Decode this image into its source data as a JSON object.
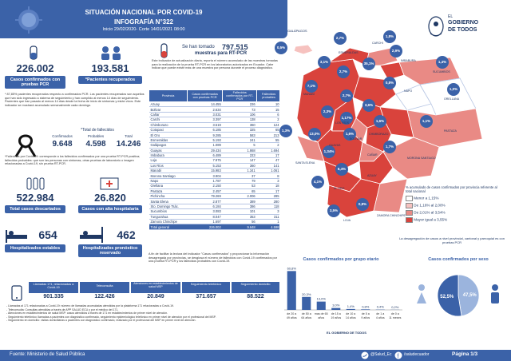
{
  "header": {
    "title": "SITUACIÓN NACIONAL POR COVID-19",
    "subtitle": "INFOGRAFÍA N°322",
    "period": "Inicio 29/02/2020- Corte 14/01/2021 08:00",
    "logo_line1": "EL",
    "logo_line2": "GOBIERNO",
    "logo_line3": "DE TODOS"
  },
  "stats": {
    "confirmed_pcr": "226.002",
    "confirmed_label": "Casos confirmados con pruebas PCR",
    "recovered": "193.581",
    "recovered_label": "*Pacientes recuperados",
    "recovered_note": "* 87,85% pacientes recuperados respecto a confirmados PCR. Los pacientes recuperados son aquellos que han sido ingresado a sistema de seguimiento y han cumplido al menos 14 días de seguimiento. Pacientes que han pasado al menos 14 días desde la fecha de inicio de síntomas y están vivos. Este indicador se mostrará acumulado semanalmente cada domingo.",
    "deaths_title": "*Total de fallecidos",
    "deaths_confirmed_label": "Confirmados",
    "deaths_confirmed": "9.648",
    "deaths_probable_label": "Probables",
    "deaths_probable": "4.598",
    "deaths_total_label": "Total",
    "deaths_total": "14.246",
    "deaths_note": "*Fallecidos por Covid-19: corresponde a los fallecidos confirmados por una prueba RT-PCR positiva; fallecidos probables: que son las personas con síntomas, otras pruebas de laboratorio o imagen relacionadas a Covid-19, sin prueba RT-PCR.",
    "discarded": "522.984",
    "discarded_label": "Total casos descartados",
    "hospital_discharge": "26.820",
    "hospital_discharge_label": "Casos con alta hospitalaria",
    "hospitalized_stable": "654",
    "hospitalized_stable_label": "Hospitalizados estables",
    "hospitalized_reserved": "462",
    "hospitalized_reserved_label": "Hospitalizados pronóstico reservado"
  },
  "tests": {
    "label": "Se han tomado",
    "value": "797.515",
    "unit": "muestras para RT-PCR",
    "note": "Este indicador de actualización diaria, reporta el número acumulado de las muestras tomadas para la realización de la prueba RT-PCR en los laboratorios autorizados en Ecuador. Cabe indicar que puede existir más de una muestra por persona durante el proceso diagnóstico."
  },
  "table": {
    "headers": [
      "Provincia",
      "Casos confirmados con pruebas PCR",
      "Fallecidos confirmados por RT-PCR",
      "Fallecidos probables"
    ],
    "rows": [
      [
        "Azuay",
        "14.455",
        "226",
        "10"
      ],
      [
        "Bolívar",
        "2.634",
        "73",
        "15"
      ],
      [
        "Cañar",
        "3.031",
        "106",
        "6"
      ],
      [
        "Carchi",
        "3.397",
        "138",
        "2"
      ],
      [
        "Chimborazo",
        "3.519",
        "360",
        "124"
      ],
      [
        "Cotopaxi",
        "6.185",
        "325",
        "65"
      ],
      [
        "El Oro",
        "9.285",
        "583",
        "213"
      ],
      [
        "Esmeraldas",
        "5.193",
        "241",
        "55"
      ],
      [
        "Galápagos",
        "1.089",
        "5",
        "2"
      ],
      [
        "Guayas",
        "29.434",
        "1.868",
        "1.694"
      ],
      [
        "Imbabura",
        "6.489",
        "223",
        "17"
      ],
      [
        "Loja",
        "7.975",
        "147",
        "47"
      ],
      [
        "Los Ríos",
        "5.153",
        "360",
        "141"
      ],
      [
        "Manabí",
        "15.983",
        "1.341",
        "1.061"
      ],
      [
        "Morona Santiago",
        "3.904",
        "37",
        "8"
      ],
      [
        "Napo",
        "1.787",
        "79",
        "3"
      ],
      [
        "Orellana",
        "2.150",
        "53",
        "18"
      ],
      [
        "Pastaza",
        "2.457",
        "65",
        "17"
      ],
      [
        "Pichincha",
        "79.269",
        "2.006",
        "285"
      ],
      [
        "Santa Elena",
        "2.877",
        "389",
        "280"
      ],
      [
        "Sto. Domingo Tsác.",
        "6.184",
        "386",
        "118"
      ],
      [
        "Sucumbíos",
        "3.083",
        "101",
        "3"
      ],
      [
        "Tungurahua",
        "8.047",
        "353",
        "311"
      ],
      [
        "Zamora Chinchipe",
        "1.697",
        "56",
        "1"
      ]
    ],
    "total": [
      "Total general",
      "226.002",
      "9.648",
      "4.598"
    ],
    "footnote": "A fin de facilitar la lectura del indicador \"Casos confirmados\" y proporcionar la información desagregada por provincias, se desglosa el número de fallecidos con Covid-19 confirmados por una prueba RT-PCR y los fallecidos probables con Covid-19."
  },
  "map": {
    "title_galapagos": "GALÁPAGOS",
    "badges": [
      {
        "label": "0,5%"
      },
      {
        "label": "2,7%"
      },
      {
        "label": "1,8%"
      },
      {
        "label": "2,9%"
      },
      {
        "label": "3,1%"
      },
      {
        "label": "35,1%"
      },
      {
        "label": "1,4%"
      },
      {
        "label": "7,1%"
      },
      {
        "label": "2,7%"
      },
      {
        "label": "0,8%"
      },
      {
        "label": "1,0%"
      },
      {
        "label": "2,7%"
      },
      {
        "label": "3,6%"
      },
      {
        "label": "1,6%"
      },
      {
        "label": "2,3%"
      },
      {
        "label": "1,17%"
      },
      {
        "label": "1,3%"
      },
      {
        "label": "13,0%"
      },
      {
        "label": "1,6%"
      },
      {
        "label": "1,1%"
      },
      {
        "label": "1,34%"
      },
      {
        "label": "1,7%"
      },
      {
        "label": "6,4%"
      },
      {
        "label": "4,1%"
      },
      {
        "label": "3,5%"
      },
      {
        "label": "0,8%"
      }
    ],
    "provinces": [
      "ESMERALDAS",
      "CARCHI",
      "IMBABURA",
      "SUCUMBÍOS",
      "MANABÍ",
      "NAPO",
      "ORELLANA",
      "PASTAZA",
      "GUAYAS",
      "CHIMBORAZO",
      "CAÑAR",
      "AZUAY",
      "MORONA SANTIAGO",
      "EL ORO",
      "LOJA",
      "ZAMORA CHINCHIPE",
      "SANTA ELENA",
      "LOS RÍOS",
      "BOLÍVAR"
    ],
    "legend_title": "% acumulado de casos confirmados por provincia referente al total nacional",
    "legend": [
      {
        "label": "Menor a 1,15%",
        "color": "#ffffff"
      },
      {
        "label": "De 1,16% al 2,00%",
        "color": "#f6c2bf"
      },
      {
        "label": "De 2,01% al 3,54%",
        "color": "#e98a85"
      },
      {
        "label": "Mayor igual a 3,55%",
        "color": "#d9433c"
      }
    ],
    "note": "La desagregación de casos a nivel provincial, cantonal y parroquial es con pruebas PCR"
  },
  "age_chart_title": "Casos confirmados por grupo etario",
  "sex_chart_title": "Casos confirmados por sexo",
  "chart_data": [
    {
      "type": "bar",
      "title": "Casos confirmados por grupo etario",
      "categories": [
        "de 20 a 49 años",
        "de 50 a 64 años",
        "mas de 65 años",
        "de 15 a 19 años",
        "de 10 a 14 años",
        "de 5 a 9 años",
        "de 1 a 4 años",
        "de 0 a 11 meses"
      ],
      "values": [
        60.8,
        20.3,
        13.0,
        3.0,
        1.4,
        0.8,
        0.4,
        0.2
      ],
      "labels": [
        "60,8%",
        "20,3%",
        "13,0%",
        "3,0%",
        "1,4%",
        "0,8%",
        "0,4%",
        "0,2%"
      ],
      "ylim": [
        0,
        65
      ]
    },
    {
      "type": "pie",
      "title": "Casos confirmados por sexo",
      "categories": [
        "Mujer",
        "Hombre"
      ],
      "values": [
        47.5,
        52.5
      ],
      "labels": [
        "47,5%",
        "52,5%"
      ],
      "colors": [
        "#9bb4dd",
        "#3b62a8"
      ]
    }
  ],
  "tracking": {
    "calls_label": "Llamadas 171, relacionadas a Covid-19",
    "calls": "901.335",
    "telecons_label": "Teleconsulta",
    "telecons": "122.426",
    "attentions_label": "Atenciones en establecimientos de salud MSP",
    "attentions": "20.849",
    "tele_label": "Seguimiento telefónico",
    "tele": "371.657",
    "home_label": "Seguimiento domicilio",
    "home": "88.522",
    "notes": [
      "- Llamadas al 171 relacionadas a Covid-19: número de llamadas acumuladas atendidas por la plataforma 171 relacionadas a Covid-19.",
      "- Teleconsulta: Consultas atendidas a través de APP SALUD ECU y por el médico del 171.",
      "- Atenciones en establecimientos de salud MSP: casos atendidos a través de 171 en establecimientos de primer nivel de atención.",
      "- Seguimiento telefónico: llamadas a pacientes con diagnóstico confirmado, seguimiento epidemiológico telefónico en primer nivel de atención por el profesional del MSP.",
      "- Seguimiento en domicilio: visitas domiciliarias a pacientes con diagnóstico confirmado, realizado por el profesional del MSP en primer nivel de atención."
    ]
  },
  "footer": {
    "source": "Fuente: Ministerio de Salud Pública",
    "social1": "@Salud_Ec",
    "social2": "/saludecuador",
    "page": "Página 1/3"
  }
}
